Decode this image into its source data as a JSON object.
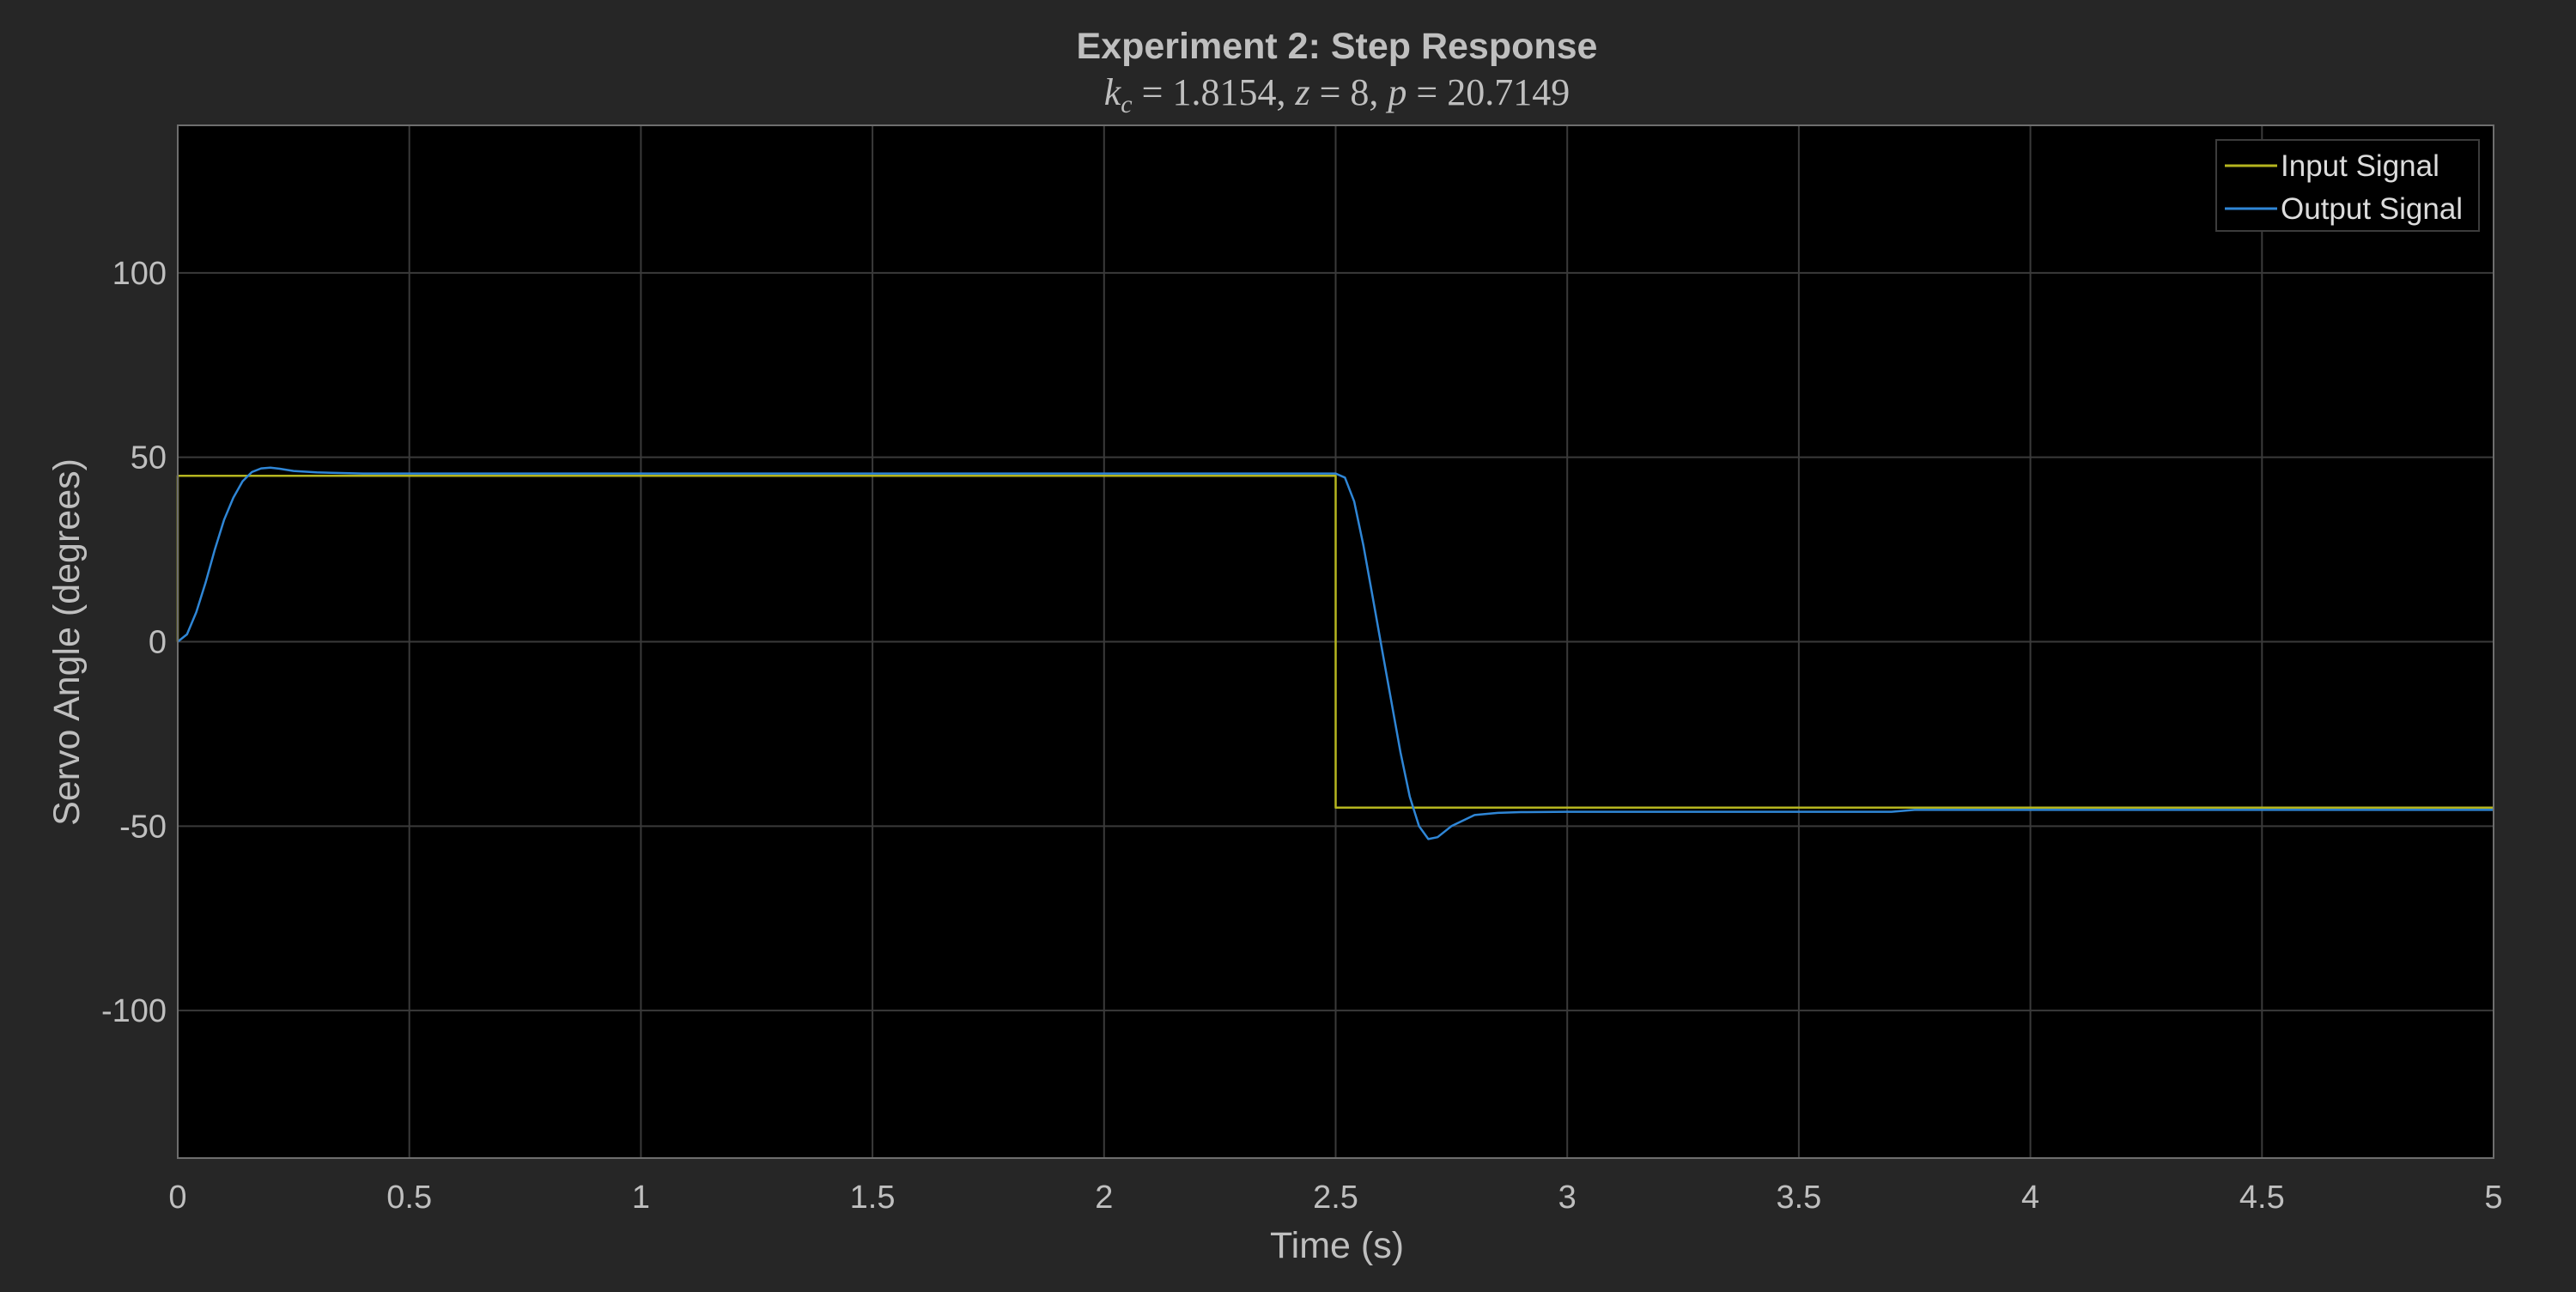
{
  "chart_data": {
    "type": "line",
    "title": "Experiment 2: Step Response",
    "subtitle": "k_c = 1.8154, z = 8, p = 20.7149",
    "xlabel": "Time (s)",
    "ylabel": "Servo Angle (degrees)",
    "xlim": [
      0,
      5
    ],
    "ylim": [
      -140,
      140
    ],
    "xticks": [
      0,
      0.5,
      1,
      1.5,
      2,
      2.5,
      3,
      3.5,
      4,
      4.5,
      5
    ],
    "xtick_labels": [
      "0",
      "0.5",
      "1",
      "1.5",
      "2",
      "2.5",
      "3",
      "3.5",
      "4",
      "4.5",
      "5"
    ],
    "yticks": [
      -100,
      -50,
      0,
      50,
      100
    ],
    "ytick_labels": [
      "-100",
      "-50",
      "0",
      "50",
      "100"
    ],
    "grid": true,
    "legend_position": "top-right",
    "series": [
      {
        "name": "Input Signal",
        "color": "#b5b51f",
        "x": [
          0,
          0,
          2.5,
          2.5,
          5
        ],
        "y": [
          0,
          45,
          45,
          -45,
          -45
        ]
      },
      {
        "name": "Output Signal",
        "color": "#2f86d6",
        "x": [
          0,
          0.02,
          0.04,
          0.06,
          0.08,
          0.1,
          0.12,
          0.14,
          0.16,
          0.18,
          0.2,
          0.22,
          0.25,
          0.3,
          0.4,
          1,
          2,
          2.5,
          2.52,
          2.54,
          2.56,
          2.58,
          2.6,
          2.62,
          2.64,
          2.66,
          2.68,
          2.7,
          2.72,
          2.75,
          2.8,
          2.85,
          2.9,
          3,
          3.7,
          3.75,
          4,
          5
        ],
        "y": [
          0,
          2,
          8,
          16,
          25,
          33,
          39,
          43.5,
          46,
          47,
          47.2,
          46.9,
          46.3,
          45.9,
          45.6,
          45.6,
          45.6,
          45.6,
          44.5,
          38,
          26,
          12,
          -2,
          -16,
          -30,
          -42,
          -50,
          -53.5,
          -53,
          -50,
          -47,
          -46.4,
          -46.2,
          -46.1,
          -46.1,
          -45.6,
          -45.6,
          -45.6
        ]
      }
    ]
  }
}
